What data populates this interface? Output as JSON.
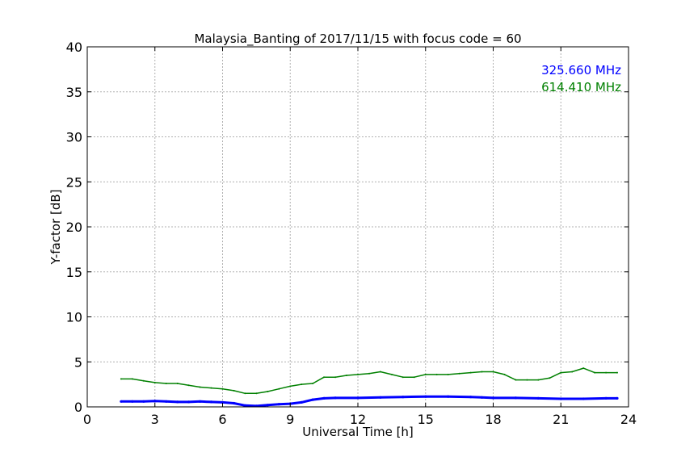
{
  "chart_data": {
    "type": "line",
    "title": "Malaysia_Banting of 2017/11/15 with focus code = 60",
    "xlabel": "Universal Time [h]",
    "ylabel": "Y-factor [dB]",
    "xlim": [
      0,
      24
    ],
    "ylim": [
      0,
      40
    ],
    "x_ticks": [
      "0",
      "3",
      "6",
      "9",
      "12",
      "15",
      "18",
      "21",
      "24"
    ],
    "y_ticks": [
      "0",
      "5",
      "10",
      "15",
      "20",
      "25",
      "30",
      "35",
      "40"
    ],
    "grid": true,
    "legend_position": "top-right",
    "series": [
      {
        "name": "325.660 MHz",
        "color": "#0000ff",
        "points": [
          [
            1.5,
            0.6
          ],
          [
            2.0,
            0.6
          ],
          [
            2.5,
            0.6
          ],
          [
            3.0,
            0.65
          ],
          [
            3.5,
            0.6
          ],
          [
            4.0,
            0.55
          ],
          [
            4.5,
            0.55
          ],
          [
            5.0,
            0.6
          ],
          [
            5.5,
            0.55
          ],
          [
            6.0,
            0.5
          ],
          [
            6.5,
            0.4
          ],
          [
            7.0,
            0.15
          ],
          [
            7.5,
            0.1
          ],
          [
            8.0,
            0.2
          ],
          [
            8.5,
            0.3
          ],
          [
            9.0,
            0.35
          ],
          [
            9.5,
            0.5
          ],
          [
            10.0,
            0.8
          ],
          [
            10.5,
            0.95
          ],
          [
            11.0,
            1.0
          ],
          [
            12.0,
            1.0
          ],
          [
            13.0,
            1.05
          ],
          [
            14.0,
            1.1
          ],
          [
            15.0,
            1.15
          ],
          [
            16.0,
            1.15
          ],
          [
            17.0,
            1.1
          ],
          [
            17.5,
            1.05
          ],
          [
            18.0,
            1.0
          ],
          [
            19.0,
            1.0
          ],
          [
            20.0,
            0.95
          ],
          [
            21.0,
            0.9
          ],
          [
            22.0,
            0.9
          ],
          [
            23.0,
            0.95
          ],
          [
            23.5,
            0.95
          ]
        ]
      },
      {
        "name": "614.410 MHz",
        "color": "#008000",
        "points": [
          [
            1.5,
            3.1
          ],
          [
            2.0,
            3.1
          ],
          [
            2.5,
            2.9
          ],
          [
            3.0,
            2.7
          ],
          [
            3.5,
            2.6
          ],
          [
            4.0,
            2.6
          ],
          [
            4.5,
            2.4
          ],
          [
            5.0,
            2.2
          ],
          [
            5.5,
            2.1
          ],
          [
            6.0,
            2.0
          ],
          [
            6.5,
            1.8
          ],
          [
            7.0,
            1.5
          ],
          [
            7.5,
            1.5
          ],
          [
            8.0,
            1.7
          ],
          [
            8.5,
            2.0
          ],
          [
            9.0,
            2.3
          ],
          [
            9.5,
            2.5
          ],
          [
            10.0,
            2.6
          ],
          [
            10.5,
            3.3
          ],
          [
            11.0,
            3.3
          ],
          [
            11.5,
            3.5
          ],
          [
            12.0,
            3.6
          ],
          [
            12.5,
            3.7
          ],
          [
            13.0,
            3.9
          ],
          [
            13.5,
            3.6
          ],
          [
            14.0,
            3.3
          ],
          [
            14.5,
            3.3
          ],
          [
            15.0,
            3.6
          ],
          [
            15.5,
            3.6
          ],
          [
            16.0,
            3.6
          ],
          [
            16.5,
            3.7
          ],
          [
            17.0,
            3.8
          ],
          [
            17.5,
            3.9
          ],
          [
            18.0,
            3.9
          ],
          [
            18.5,
            3.6
          ],
          [
            19.0,
            3.0
          ],
          [
            19.5,
            3.0
          ],
          [
            20.0,
            3.0
          ],
          [
            20.5,
            3.2
          ],
          [
            21.0,
            3.8
          ],
          [
            21.5,
            3.9
          ],
          [
            22.0,
            4.3
          ],
          [
            22.5,
            3.8
          ],
          [
            23.0,
            3.8
          ],
          [
            23.5,
            3.8
          ]
        ]
      }
    ]
  }
}
